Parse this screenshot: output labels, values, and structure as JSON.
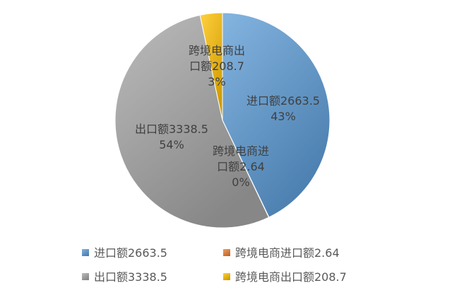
{
  "chart_data": {
    "type": "pie",
    "title": "",
    "slices": [
      {
        "legend_label": "进口额2663.5",
        "label_lines": [
          "进口额2663.5",
          "43%"
        ],
        "value": 2663.5,
        "percent": "43%",
        "color": "#5B9BD5"
      },
      {
        "legend_label": "跨境电商进口额2.64",
        "label_lines": [
          "跨境电商进",
          "口额2.64",
          "0%"
        ],
        "value": 2.64,
        "percent": "0%",
        "color": "#ED7D31"
      },
      {
        "legend_label": "出口额3338.5",
        "label_lines": [
          "出口额3338.5",
          "54%"
        ],
        "value": 3338.5,
        "percent": "54%",
        "color": "#A5A5A5"
      },
      {
        "legend_label": "跨境电商出口额208.7",
        "label_lines": [
          "跨境电商出",
          "口额208.7",
          "3%"
        ],
        "value": 208.7,
        "percent": "3%",
        "color": "#FFC000"
      }
    ],
    "legend_position": "bottom"
  }
}
